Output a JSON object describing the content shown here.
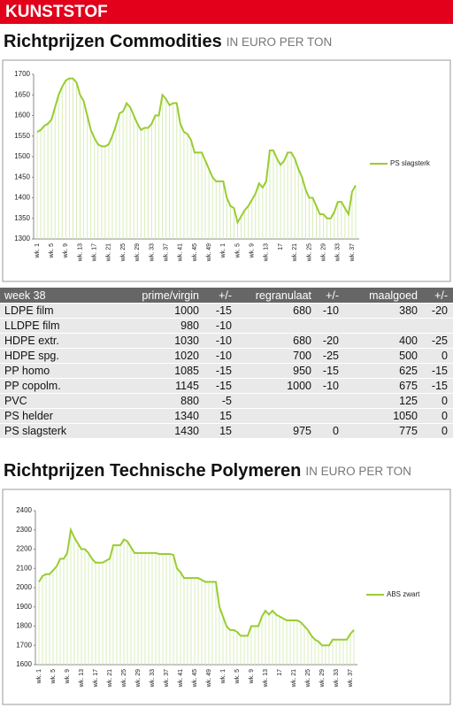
{
  "header": "KUNSTSTOF",
  "sections": [
    {
      "title": "Richtprijzen Commodities",
      "unit": "IN EURO PER TON"
    },
    {
      "title": "Richtprijzen Technische Polymeren",
      "unit": "IN EURO PER TON"
    }
  ],
  "table": {
    "header": [
      "week 38",
      "prime/virgin",
      "+/-",
      "regranulaat",
      "+/-",
      "maalgoed",
      "+/-"
    ],
    "rows": [
      [
        "LDPE film",
        1000,
        -15,
        680,
        -10,
        380,
        -20
      ],
      [
        "LLDPE film",
        980,
        -10,
        null,
        null,
        null,
        null
      ],
      [
        "HDPE extr.",
        1030,
        -10,
        680,
        -20,
        400,
        -25
      ],
      [
        "HDPE spg.",
        1020,
        -10,
        700,
        -25,
        500,
        0
      ],
      [
        "PP homo",
        1085,
        -15,
        950,
        -15,
        625,
        -15
      ],
      [
        "PP copolm.",
        1145,
        -15,
        1000,
        -10,
        675,
        -15
      ],
      [
        "PVC",
        880,
        -5,
        null,
        null,
        125,
        0
      ],
      [
        "PS helder",
        1340,
        15,
        null,
        null,
        1050,
        0
      ],
      [
        "PS slagsterk",
        1430,
        15,
        975,
        0,
        775,
        0
      ]
    ]
  },
  "chart_data": [
    {
      "type": "line",
      "legend": "right",
      "categories": [
        "wk. 1",
        null,
        null,
        null,
        "wk. 5",
        null,
        null,
        null,
        "wk. 9",
        null,
        null,
        null,
        "wk. 13",
        null,
        null,
        null,
        "wk. 17",
        null,
        null,
        null,
        "wk. 21",
        null,
        null,
        null,
        "wk. 25",
        null,
        null,
        null,
        "wk. 29",
        null,
        null,
        null,
        "wk. 33",
        null,
        null,
        null,
        "wk. 37",
        null,
        null,
        null,
        "wk. 41",
        null,
        null,
        null,
        "wk. 45",
        null,
        null,
        null,
        "wk. 49",
        null,
        null,
        null,
        "wk. 1",
        null,
        null,
        null,
        "wk. 5",
        null,
        null,
        null,
        "wk. 9",
        null,
        null,
        null,
        "wk. 13",
        null,
        null,
        null,
        "17",
        null,
        null,
        null,
        "wk. 21",
        null,
        null,
        null,
        "wk. 25",
        null,
        null,
        null,
        "wk. 29",
        null,
        null,
        null,
        "wk. 33",
        null,
        null,
        null,
        "wk. 37",
        null
      ],
      "series": [
        {
          "name": "PS slagsterk",
          "color": "#99cc33",
          "values": [
            1560,
            1565,
            1575,
            1580,
            1590,
            1620,
            1650,
            1670,
            1685,
            1690,
            1690,
            1680,
            1650,
            1635,
            1600,
            1565,
            1545,
            1530,
            1525,
            1525,
            1530,
            1550,
            1575,
            1605,
            1610,
            1630,
            1620,
            1600,
            1580,
            1565,
            1570,
            1570,
            1580,
            1600,
            1600,
            1650,
            1640,
            1625,
            1630,
            1630,
            1580,
            1560,
            1555,
            1540,
            1510,
            1510,
            1510,
            1490,
            1470,
            1450,
            1440,
            1440,
            1440,
            1400,
            1380,
            1375,
            1340,
            1355,
            1370,
            1380,
            1395,
            1410,
            1435,
            1425,
            1440,
            1515,
            1515,
            1495,
            1480,
            1490,
            1510,
            1510,
            1495,
            1470,
            1450,
            1420,
            1400,
            1400,
            1380,
            1360,
            1360,
            1350,
            1350,
            1365,
            1390,
            1390,
            1375,
            1360,
            1415,
            1430
          ]
        }
      ],
      "ylim": [
        1300,
        1700
      ],
      "yticks": [
        1300,
        1350,
        1400,
        1450,
        1500,
        1550,
        1600,
        1650,
        1700
      ]
    },
    {
      "type": "line",
      "legend": "right",
      "categories": [
        "wk. 1",
        null,
        null,
        null,
        "wk. 5",
        null,
        null,
        null,
        "wk. 9",
        null,
        null,
        null,
        "wk. 13",
        null,
        null,
        null,
        "wk. 17",
        null,
        null,
        null,
        "wk. 21",
        null,
        null,
        null,
        "wk. 25",
        null,
        null,
        null,
        "wk. 29",
        null,
        null,
        null,
        "wk. 33",
        null,
        null,
        null,
        "wk. 37",
        null,
        null,
        null,
        "wk. 41",
        null,
        null,
        null,
        "wk. 45",
        null,
        null,
        null,
        "wk. 49",
        null,
        null,
        null,
        "wk. 1",
        null,
        null,
        null,
        "wk. 5",
        null,
        null,
        null,
        "wk. 9",
        null,
        null,
        null,
        "wk. 13",
        null,
        null,
        null,
        "17",
        null,
        null,
        null,
        "wk. 21",
        null,
        null,
        null,
        "wk. 25",
        null,
        null,
        null,
        "wk. 29",
        null,
        null,
        null,
        "wk. 33",
        null,
        null,
        null,
        "wk. 37",
        null
      ],
      "series": [
        {
          "name": "ABS zwart",
          "color": "#99cc33",
          "values": [
            2030,
            2060,
            2070,
            2070,
            2090,
            2110,
            2150,
            2150,
            2180,
            2300,
            2260,
            2230,
            2200,
            2200,
            2180,
            2150,
            2130,
            2130,
            2130,
            2140,
            2150,
            2220,
            2220,
            2220,
            2250,
            2240,
            2210,
            2180,
            2180,
            2180,
            2180,
            2180,
            2180,
            2180,
            2175,
            2175,
            2175,
            2175,
            2170,
            2100,
            2080,
            2050,
            2050,
            2050,
            2050,
            2050,
            2040,
            2030,
            2030,
            2030,
            2030,
            1900,
            1850,
            1800,
            1780,
            1780,
            1770,
            1750,
            1750,
            1750,
            1800,
            1800,
            1800,
            1850,
            1880,
            1860,
            1880,
            1860,
            1850,
            1840,
            1830,
            1830,
            1830,
            1830,
            1820,
            1800,
            1780,
            1750,
            1730,
            1720,
            1700,
            1700,
            1700,
            1730,
            1730,
            1730,
            1730,
            1730,
            1760,
            1780
          ]
        }
      ],
      "ylim": [
        1600,
        2400
      ],
      "yticks": [
        1600,
        1700,
        1800,
        1900,
        2000,
        2100,
        2200,
        2300,
        2400
      ]
    }
  ]
}
